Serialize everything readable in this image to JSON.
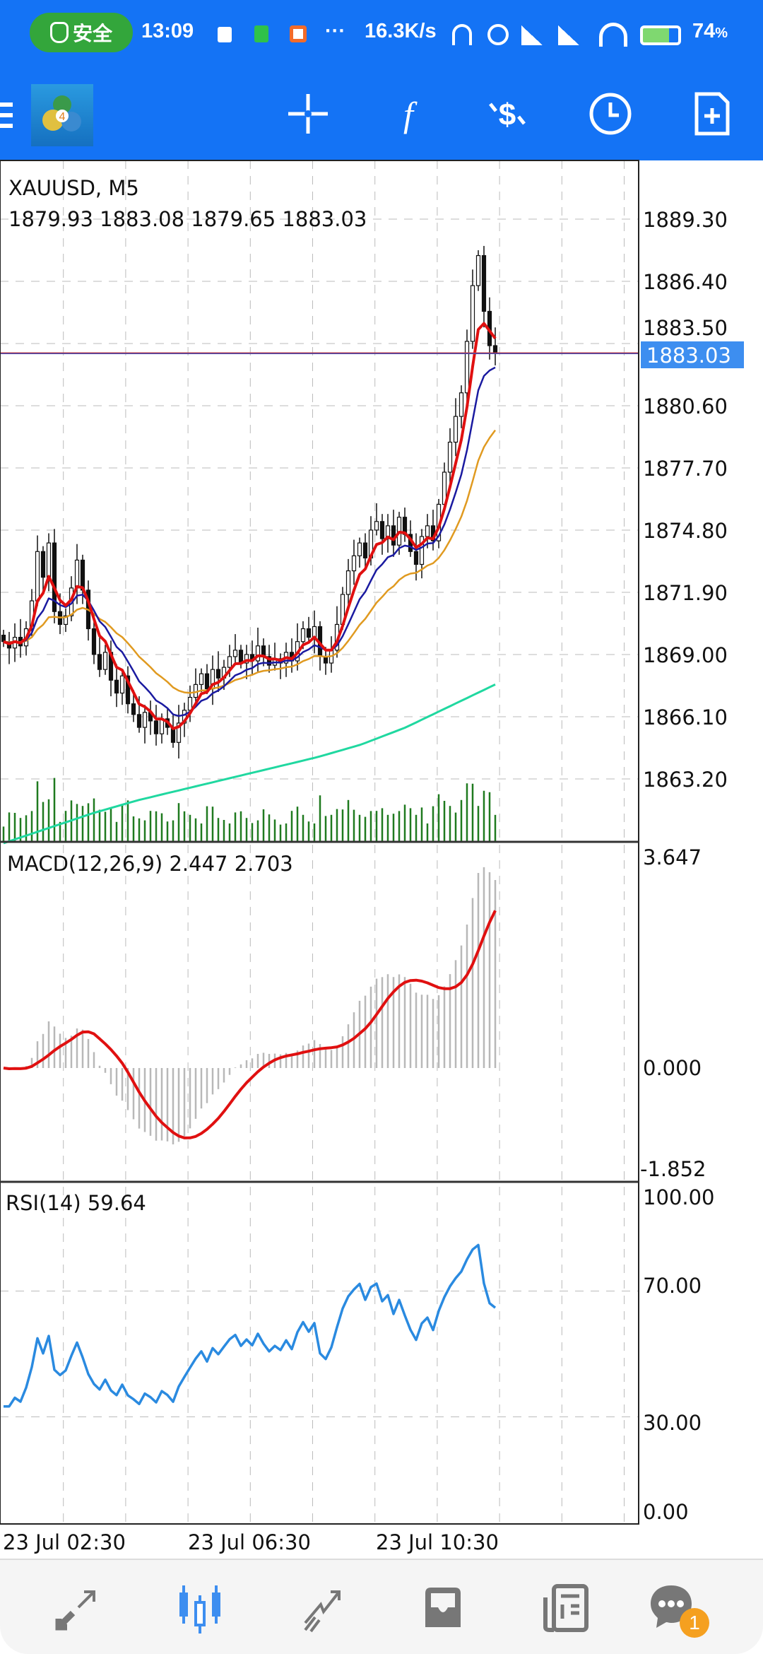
{
  "status_bar": {
    "security_label": "安全",
    "time": "13:09",
    "more": "···",
    "net_speed": "16.3K/s",
    "battery": "74",
    "battery_unit": "%"
  },
  "toolbar": {
    "icons": [
      "menu-icon",
      "mt4-logo",
      "crosshair-icon",
      "indicators-icon",
      "trade-icon",
      "timeframe-icon",
      "new-order-icon"
    ]
  },
  "main_chart": {
    "symbol_label": "XAUUSD, M5",
    "ohlc_label": "1879.93 1883.08 1879.65 1883.03",
    "current_price": "1883.03",
    "price_labels": [
      "1889.30",
      "1886.40",
      "1883.50",
      "1880.60",
      "1877.70",
      "1874.80",
      "1871.90",
      "1869.00",
      "1866.10",
      "1863.20"
    ],
    "time_labels": [
      "23 Jul 02:30",
      "23 Jul 06:30",
      "23 Jul 10:30"
    ]
  },
  "macd": {
    "label": "MACD(12,26,9) 2.447 2.703",
    "axis_labels": [
      "3.647",
      "0.000",
      "-1.852"
    ]
  },
  "rsi": {
    "label": "RSI(14) 59.64",
    "axis_labels": [
      "100.00",
      "70.00",
      "30.00",
      "0.00"
    ]
  },
  "bottom_nav": {
    "items": [
      "quotes",
      "chart",
      "trade",
      "history",
      "news",
      "messages"
    ],
    "messages_badge": "1",
    "active": "chart"
  },
  "colors": {
    "brand": "#1473f5",
    "ma_fast": "#e01010",
    "ma_mid": "#1a1aa0",
    "ma_slow": "#e09a20",
    "ma_long": "#20d8a0",
    "volume": "#1f7a1f",
    "rsi": "#2a8ae0",
    "macd_hist": "#b8b8b8",
    "macd_signal": "#e01010",
    "badge": "#f5a020"
  },
  "chart_data": {
    "type": "candlestick",
    "title": "XAUUSD, M5",
    "ylim": [
      1861.3,
      1890.8
    ],
    "closes": [
      1869.6,
      1869.3,
      1869.8,
      1869.4,
      1870.2,
      1871.5,
      1873.8,
      1872.6,
      1874.2,
      1871.0,
      1870.4,
      1870.8,
      1872.1,
      1873.4,
      1872.0,
      1870.2,
      1869.0,
      1868.3,
      1869.1,
      1867.8,
      1867.2,
      1868.0,
      1866.7,
      1866.2,
      1865.6,
      1866.3,
      1865.9,
      1865.3,
      1866.0,
      1865.6,
      1864.9,
      1865.8,
      1866.4,
      1867.0,
      1867.6,
      1868.1,
      1867.4,
      1868.3,
      1867.9,
      1868.4,
      1868.9,
      1869.2,
      1868.6,
      1869.0,
      1868.7,
      1869.4,
      1868.9,
      1868.5,
      1868.8,
      1868.6,
      1869.1,
      1868.7,
      1869.6,
      1870.2,
      1869.8,
      1870.3,
      1868.9,
      1868.6,
      1869.2,
      1870.4,
      1871.8,
      1872.9,
      1873.6,
      1874.2,
      1873.5,
      1874.8,
      1875.2,
      1874.4,
      1875.0,
      1874.1,
      1875.4,
      1874.6,
      1873.8,
      1873.2,
      1874.5,
      1875.0,
      1874.3,
      1876.0,
      1877.5,
      1878.9,
      1880.1,
      1881.2,
      1883.6,
      1886.2,
      1887.6,
      1885.0,
      1883.4,
      1883.03
    ],
    "ma_long": [
      1860.2,
      1860.9,
      1861.6,
      1862.2,
      1862.7,
      1863.2,
      1863.7,
      1864.2,
      1864.8,
      1865.6,
      1866.6,
      1867.6
    ],
    "macd_ylim": [
      -1.852,
      3.647
    ],
    "rsi_ylim": [
      0,
      100
    ],
    "rsi_levels": [
      70,
      30
    ]
  }
}
